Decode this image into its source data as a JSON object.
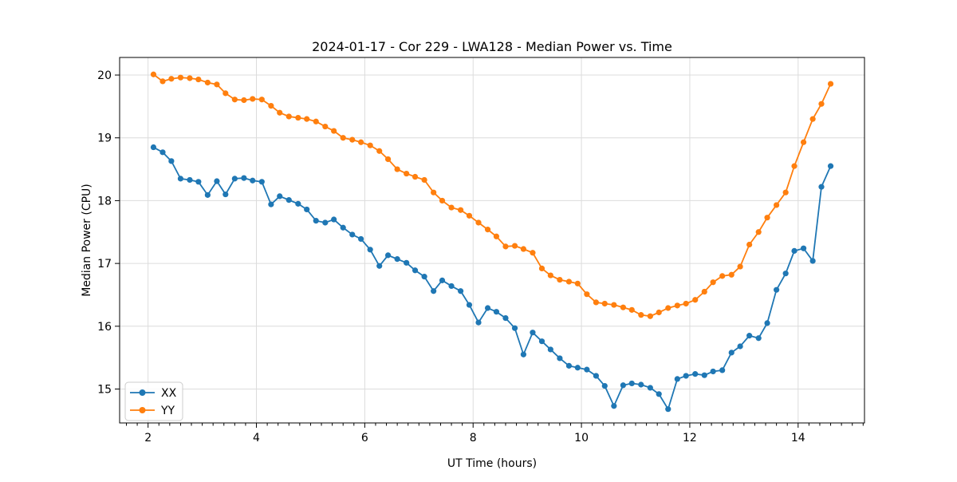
{
  "window": {
    "title": "2024-01-17 - Cor 229 - LWA128 - Median Power vs. Time"
  },
  "chart_data": {
    "type": "line",
    "title": "2024-01-17 - Cor 229 - LWA128 - Median Power vs. Time",
    "xlabel": "UT Time (hours)",
    "ylabel": "Median Power (CPU)",
    "xlim": [
      1.475,
      15.225
    ],
    "ylim": [
      14.46,
      20.28
    ],
    "xticks": [
      2,
      4,
      6,
      8,
      10,
      12,
      14
    ],
    "yticks": [
      15,
      16,
      17,
      18,
      19,
      20
    ],
    "x_minor_tick_step": 0.2,
    "grid": true,
    "legend_position": "lower-left",
    "marker": "circle",
    "x": [
      2.1,
      2.27,
      2.43,
      2.6,
      2.77,
      2.93,
      3.1,
      3.27,
      3.43,
      3.6,
      3.77,
      3.93,
      4.1,
      4.27,
      4.43,
      4.6,
      4.77,
      4.93,
      5.1,
      5.27,
      5.43,
      5.6,
      5.77,
      5.93,
      6.1,
      6.27,
      6.43,
      6.6,
      6.77,
      6.93,
      7.1,
      7.27,
      7.43,
      7.6,
      7.77,
      7.93,
      8.1,
      8.27,
      8.43,
      8.6,
      8.77,
      8.93,
      9.1,
      9.27,
      9.43,
      9.6,
      9.77,
      9.93,
      10.1,
      10.27,
      10.43,
      10.6,
      10.77,
      10.93,
      11.1,
      11.27,
      11.43,
      11.6,
      11.77,
      11.93,
      12.1,
      12.27,
      12.43,
      12.6,
      12.77,
      12.93,
      13.1,
      13.27,
      13.43,
      13.6,
      13.77,
      13.93,
      14.1,
      14.27,
      14.43,
      14.6
    ],
    "series": [
      {
        "name": "XX",
        "color": "#1f77b4",
        "values": [
          18.85,
          18.77,
          18.63,
          18.35,
          18.33,
          18.3,
          18.09,
          18.31,
          18.1,
          18.35,
          18.36,
          18.32,
          18.3,
          17.94,
          18.07,
          18.01,
          17.95,
          17.86,
          17.68,
          17.65,
          17.7,
          17.57,
          17.46,
          17.39,
          17.22,
          16.96,
          17.13,
          17.07,
          17.01,
          16.89,
          16.79,
          16.56,
          16.73,
          16.64,
          16.56,
          16.34,
          16.06,
          16.29,
          16.23,
          16.13,
          15.97,
          15.55,
          15.9,
          15.76,
          15.63,
          15.49,
          15.37,
          15.34,
          15.31,
          15.21,
          15.05,
          14.73,
          15.06,
          15.09,
          15.07,
          15.02,
          14.92,
          14.68,
          15.16,
          15.21,
          15.24,
          15.22,
          15.28,
          15.3,
          15.58,
          15.68,
          15.85,
          15.81,
          16.05,
          16.58,
          16.84,
          17.2,
          17.24,
          17.04,
          18.22,
          18.55
        ]
      },
      {
        "name": "YY",
        "color": "#ff7f0e",
        "values": [
          20.01,
          19.9,
          19.94,
          19.96,
          19.95,
          19.93,
          19.88,
          19.85,
          19.71,
          19.61,
          19.6,
          19.62,
          19.61,
          19.51,
          19.4,
          19.34,
          19.32,
          19.3,
          19.26,
          19.18,
          19.11,
          19.0,
          18.97,
          18.93,
          18.88,
          18.79,
          18.66,
          18.5,
          18.43,
          18.38,
          18.33,
          18.13,
          18.0,
          17.89,
          17.85,
          17.76,
          17.65,
          17.54,
          17.43,
          17.27,
          17.28,
          17.23,
          17.17,
          16.92,
          16.81,
          16.74,
          16.71,
          16.68,
          16.51,
          16.38,
          16.36,
          16.34,
          16.3,
          16.26,
          16.18,
          16.16,
          16.22,
          16.29,
          16.33,
          16.36,
          16.42,
          16.55,
          16.7,
          16.8,
          16.82,
          16.95,
          17.3,
          17.5,
          17.73,
          17.93,
          18.13,
          18.55,
          18.93,
          19.3,
          19.54,
          19.86
        ]
      }
    ]
  }
}
